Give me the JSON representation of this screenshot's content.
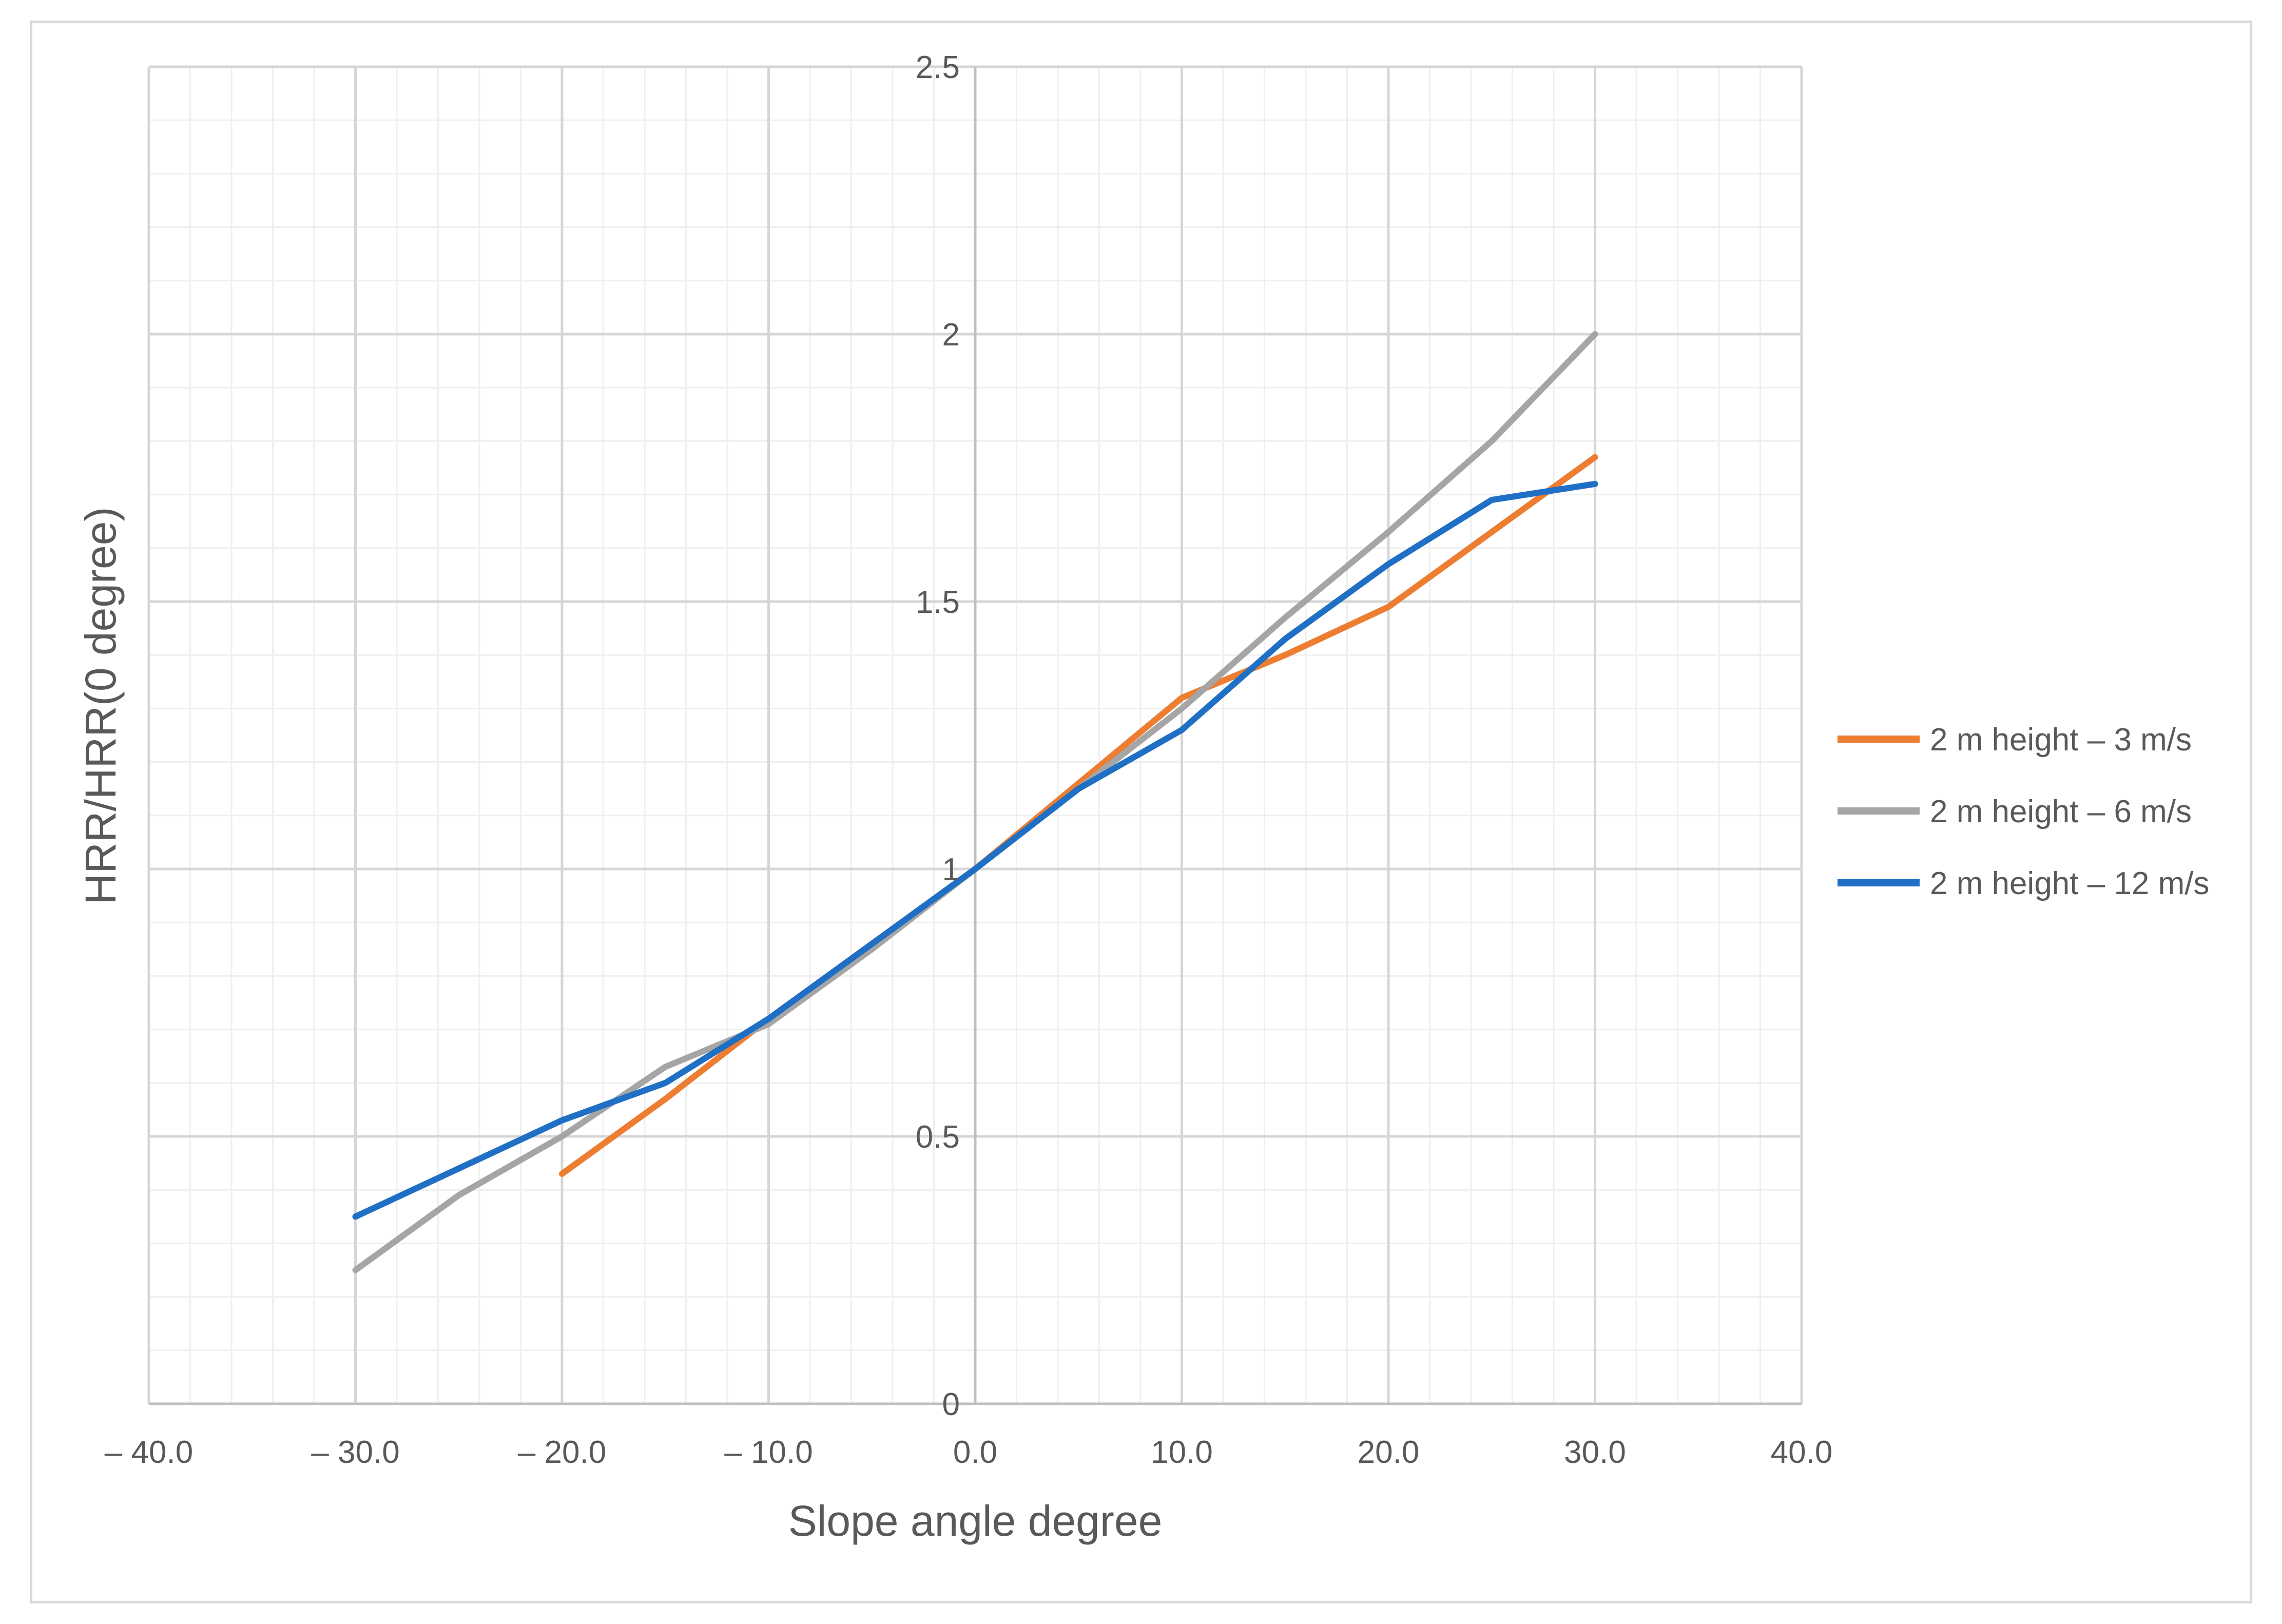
{
  "chart_data": {
    "type": "line",
    "title": "",
    "xlabel": "Slope angle degree",
    "ylabel": "HRR/HRR(0 degree)",
    "xlim": [
      -40,
      40
    ],
    "ylim": [
      0,
      2.5
    ],
    "x_ticks": [
      "– 40.0",
      "– 30.0",
      "– 20.0",
      "– 10.0",
      "0.0",
      "10.0",
      "20.0",
      "30.0",
      "40.0"
    ],
    "x_tick_values": [
      -40,
      -30,
      -20,
      -10,
      0,
      10,
      20,
      30,
      40
    ],
    "y_ticks": [
      "0",
      "0.5",
      "1",
      "1.5",
      "2",
      "2.5"
    ],
    "y_tick_values": [
      0,
      0.5,
      1,
      1.5,
      2,
      2.5
    ],
    "grid": true,
    "legend_position": "right",
    "series": [
      {
        "name": "2 m height – 3 m/s",
        "color": "#ED7D31",
        "x": [
          -20,
          -15,
          -10,
          -5,
          0,
          5,
          10,
          15,
          20,
          25,
          30
        ],
        "y": [
          0.43,
          0.57,
          0.72,
          0.86,
          1.0,
          1.16,
          1.32,
          1.4,
          1.49,
          1.63,
          1.77
        ]
      },
      {
        "name": "2 m height – 6 m/s",
        "color": "#A5A5A5",
        "x": [
          -30,
          -25,
          -20,
          -15,
          -10,
          -5,
          0,
          5,
          10,
          15,
          20,
          25,
          30
        ],
        "y": [
          0.25,
          0.39,
          0.5,
          0.63,
          0.71,
          0.85,
          1.0,
          1.15,
          1.3,
          1.47,
          1.63,
          1.8,
          2.0
        ]
      },
      {
        "name": "2 m height – 12 m/s",
        "color": "#1F6FC5",
        "x": [
          -30,
          -25,
          -20,
          -15,
          -10,
          -5,
          0,
          5,
          10,
          15,
          20,
          25,
          30
        ],
        "y": [
          0.35,
          0.44,
          0.53,
          0.6,
          0.72,
          0.86,
          1.0,
          1.15,
          1.26,
          1.43,
          1.57,
          1.69,
          1.72
        ]
      }
    ]
  }
}
